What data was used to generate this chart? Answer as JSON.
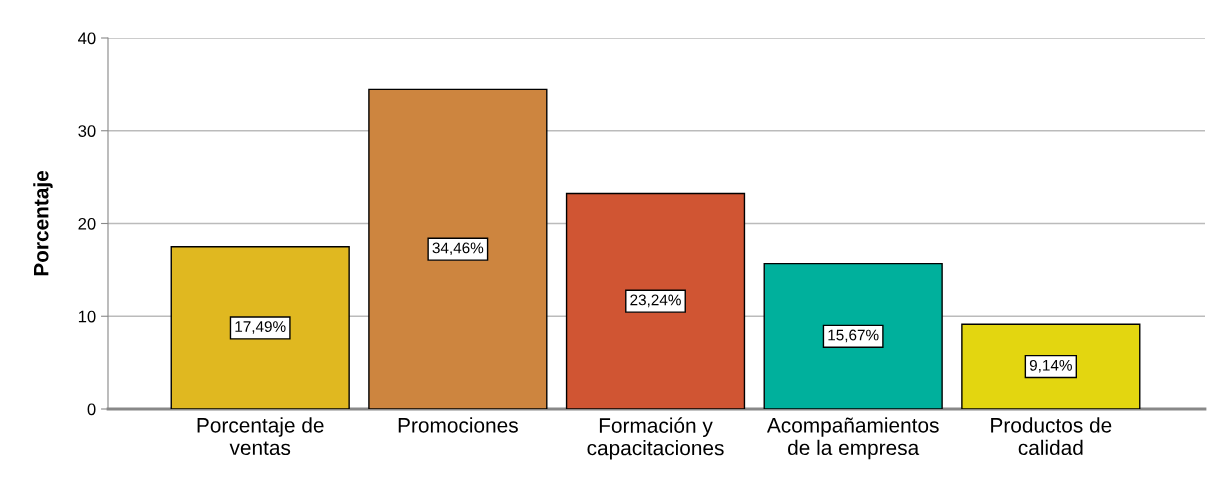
{
  "chart_data": {
    "type": "bar",
    "ylabel": "Porcentaje",
    "categories": [
      "Porcentaje de\nventas",
      "Promociones",
      "Formación y\ncapacitaciones",
      "Acompañamientos\nde la empresa",
      "Productos de\ncalidad"
    ],
    "values": [
      17.49,
      34.46,
      23.24,
      15.67,
      9.14
    ],
    "colors": [
      "#e0b820",
      "#cd853f",
      "#d05533",
      "#00b09c",
      "#e3d610"
    ],
    "value_labels": [
      "17,49%",
      "34,46%",
      "23,24%",
      "15,67%",
      "9,14%"
    ],
    "ylim": [
      0,
      40
    ],
    "yticks": [
      0,
      10,
      20,
      30,
      40
    ],
    "grid": "y"
  }
}
